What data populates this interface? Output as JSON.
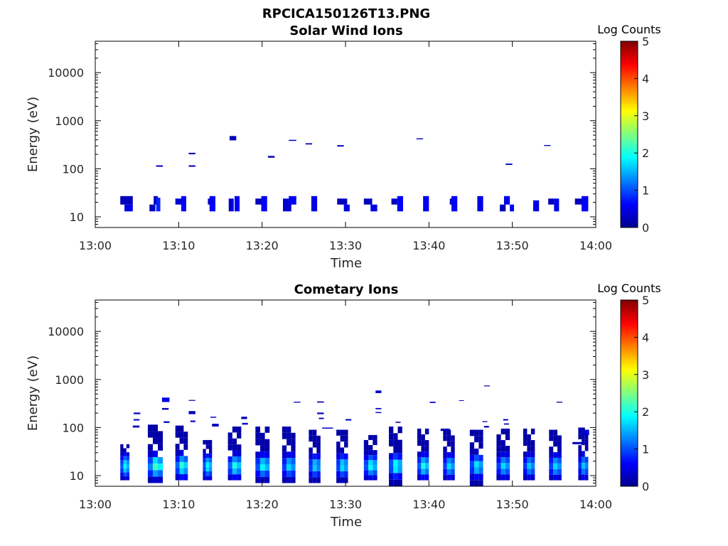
{
  "figure_title": "RPCICA150126T13.PNG",
  "chart_data": [
    {
      "type": "heatmap",
      "title": "Solar Wind Ions",
      "xlabel": "Time",
      "ylabel": "Energy (eV)",
      "x_ticks": [
        "13:00",
        "13:10",
        "13:20",
        "13:30",
        "13:40",
        "13:50",
        "14:00"
      ],
      "x_range_min": [
        0,
        60
      ],
      "y_ticks": [
        10,
        100,
        1000,
        10000
      ],
      "y_tick_labels": [
        "10",
        "100",
        "1000",
        "10000"
      ],
      "y_range_eV": [
        6,
        45000
      ],
      "y_scale": "log",
      "colorbar": {
        "label": "Log Counts",
        "range": [
          0,
          5
        ],
        "ticks": [
          "0",
          "1",
          "2",
          "3",
          "4",
          "5"
        ],
        "colormap": "jet"
      },
      "cells_note": "[t_start_min, t_end_min, e_low_eV, e_high_eV, log_counts]",
      "cells": [
        [
          3.0,
          4.5,
          18,
          27,
          0.3
        ],
        [
          3.5,
          4.5,
          13,
          18,
          0.5
        ],
        [
          6.5,
          7.2,
          13,
          18,
          0.3
        ],
        [
          7.0,
          7.5,
          18,
          27,
          0.3
        ],
        [
          7.3,
          7.8,
          13,
          25,
          0.8
        ],
        [
          7.3,
          8.1,
          110,
          118,
          0.3
        ],
        [
          9.6,
          10.4,
          18,
          24,
          0.4
        ],
        [
          10.3,
          10.9,
          13,
          27,
          0.6
        ],
        [
          11.2,
          12.0,
          200,
          215,
          0.3
        ],
        [
          11.2,
          12.0,
          110,
          118,
          0.3
        ],
        [
          13.5,
          14.0,
          18,
          24,
          0.3
        ],
        [
          13.7,
          14.4,
          13,
          27,
          0.6
        ],
        [
          16.0,
          16.6,
          13,
          24,
          0.4
        ],
        [
          16.1,
          16.9,
          390,
          480,
          0.3
        ],
        [
          16.7,
          17.3,
          13,
          27,
          0.6
        ],
        [
          19.2,
          19.9,
          18,
          24,
          0.3
        ],
        [
          19.9,
          20.6,
          13,
          27,
          0.6
        ],
        [
          20.7,
          21.5,
          170,
          185,
          0.3
        ],
        [
          22.5,
          23.5,
          13,
          24,
          0.4
        ],
        [
          23.2,
          24.1,
          18,
          27,
          0.6
        ],
        [
          23.2,
          24.1,
          380,
          400,
          0.3
        ],
        [
          25.2,
          26.0,
          320,
          340,
          0.3
        ],
        [
          25.9,
          26.6,
          13,
          27,
          0.5
        ],
        [
          29.0,
          29.8,
          290,
          310,
          0.3
        ],
        [
          29.0,
          30.2,
          18,
          24,
          0.3
        ],
        [
          29.8,
          30.5,
          13,
          18,
          0.5
        ],
        [
          32.2,
          33.2,
          18,
          24,
          0.3
        ],
        [
          33.0,
          33.8,
          13,
          18,
          0.5
        ],
        [
          35.5,
          36.2,
          18,
          24,
          0.3
        ],
        [
          36.2,
          36.9,
          13,
          27,
          0.6
        ],
        [
          38.5,
          39.3,
          410,
          430,
          0.3
        ],
        [
          39.3,
          40.0,
          13,
          27,
          0.6
        ],
        [
          42.5,
          43.0,
          18,
          24,
          0.3
        ],
        [
          42.7,
          43.4,
          13,
          27,
          0.6
        ],
        [
          45.8,
          46.5,
          13,
          27,
          0.5
        ],
        [
          48.5,
          49.2,
          13,
          18,
          0.3
        ],
        [
          49.0,
          49.7,
          18,
          27,
          0.5
        ],
        [
          49.2,
          50.0,
          120,
          128,
          0.3
        ],
        [
          49.7,
          50.2,
          13,
          18,
          0.6
        ],
        [
          52.5,
          53.2,
          13,
          22,
          0.5
        ],
        [
          53.8,
          54.6,
          298,
          312,
          0.3
        ],
        [
          54.3,
          55.0,
          18,
          24,
          0.3
        ],
        [
          55.0,
          55.6,
          13,
          24,
          0.5
        ],
        [
          57.5,
          58.5,
          18,
          24,
          0.3
        ],
        [
          58.3,
          59.1,
          13,
          27,
          0.6
        ]
      ]
    },
    {
      "type": "heatmap",
      "title": "Cometary Ions",
      "xlabel": "Time",
      "ylabel": "Energy (eV)",
      "x_ticks": [
        "13:00",
        "13:10",
        "13:20",
        "13:30",
        "13:40",
        "13:50",
        "14:00"
      ],
      "x_range_min": [
        0,
        60
      ],
      "y_ticks": [
        10,
        100,
        1000,
        10000
      ],
      "y_tick_labels": [
        "10",
        "100",
        "1000",
        "10000"
      ],
      "y_range_eV": [
        6,
        45000
      ],
      "y_scale": "log",
      "colorbar": {
        "label": "Log Counts",
        "range": [
          0,
          5
        ],
        "ticks": [
          "0",
          "1",
          "2",
          "3",
          "4",
          "5"
        ],
        "colormap": "jet"
      },
      "cells_note": "bursts: [t_start_min, width_min, e_low_eV, e_high_eV, peak_log_counts]; cells: [t_start_min, t_end_min, e_low_eV, e_high_eV, log_counts]",
      "bursts": [
        [
          3.0,
          1.1,
          8,
          45,
          1.9
        ],
        [
          6.3,
          1.8,
          7,
          115,
          2.3
        ],
        [
          9.6,
          1.5,
          8,
          110,
          2.1
        ],
        [
          12.9,
          1.1,
          8,
          55,
          1.9
        ],
        [
          15.9,
          1.6,
          8,
          105,
          2.0
        ],
        [
          19.2,
          1.7,
          7,
          105,
          1.9
        ],
        [
          22.4,
          1.6,
          7,
          105,
          1.7
        ],
        [
          25.6,
          1.4,
          7,
          90,
          1.7
        ],
        [
          28.9,
          1.4,
          7,
          90,
          1.8
        ],
        [
          32.2,
          1.6,
          8,
          70,
          1.9
        ],
        [
          35.2,
          1.6,
          6,
          105,
          2.0
        ],
        [
          38.6,
          1.4,
          8,
          95,
          2.0
        ],
        [
          41.7,
          1.4,
          8,
          90,
          1.7
        ],
        [
          44.9,
          1.6,
          6,
          90,
          1.8
        ],
        [
          48.1,
          1.6,
          8,
          95,
          1.7
        ],
        [
          51.3,
          1.4,
          8,
          95,
          1.6
        ],
        [
          54.4,
          1.5,
          8,
          90,
          1.7
        ],
        [
          57.9,
          1.2,
          8,
          100,
          1.6
        ]
      ],
      "cells": [
        [
          4.5,
          5.3,
          100,
          110,
          0.3
        ],
        [
          4.6,
          5.4,
          190,
          205,
          0.3
        ],
        [
          4.6,
          5.3,
          140,
          150,
          0.3
        ],
        [
          8.0,
          8.9,
          340,
          420,
          0.5
        ],
        [
          8.0,
          8.8,
          235,
          255,
          0.3
        ],
        [
          8.2,
          8.9,
          125,
          135,
          0.3
        ],
        [
          11.2,
          12.0,
          360,
          375,
          0.3
        ],
        [
          11.2,
          12.0,
          190,
          220,
          0.3
        ],
        [
          11.4,
          12.0,
          130,
          140,
          0.3
        ],
        [
          13.8,
          14.5,
          160,
          168,
          0.3
        ],
        [
          14.0,
          14.8,
          105,
          120,
          0.3
        ],
        [
          17.5,
          18.2,
          150,
          168,
          0.3
        ],
        [
          17.6,
          18.3,
          115,
          125,
          0.3
        ],
        [
          23.8,
          24.6,
          330,
          345,
          0.3
        ],
        [
          26.6,
          27.4,
          330,
          350,
          0.3
        ],
        [
          26.6,
          27.4,
          190,
          205,
          0.3
        ],
        [
          26.8,
          27.4,
          150,
          160,
          0.3
        ],
        [
          27.2,
          28.5,
          95,
          100,
          0.3
        ],
        [
          30.0,
          30.7,
          140,
          150,
          0.3
        ],
        [
          33.6,
          34.3,
          520,
          590,
          0.4
        ],
        [
          33.6,
          34.3,
          240,
          255,
          0.3
        ],
        [
          33.6,
          34.3,
          200,
          210,
          0.3
        ],
        [
          36.0,
          36.6,
          125,
          132,
          0.3
        ],
        [
          40.1,
          40.8,
          325,
          345,
          0.4
        ],
        [
          41.4,
          42.5,
          85,
          95,
          0.3
        ],
        [
          43.6,
          44.2,
          360,
          370,
          0.3
        ],
        [
          46.6,
          47.3,
          720,
          750,
          0.3
        ],
        [
          46.4,
          47.0,
          130,
          136,
          0.3
        ],
        [
          46.6,
          47.2,
          100,
          108,
          0.3
        ],
        [
          48.9,
          49.5,
          140,
          150,
          0.3
        ],
        [
          49.0,
          49.6,
          115,
          122,
          0.3
        ],
        [
          55.3,
          56.0,
          330,
          345,
          0.3
        ],
        [
          57.2,
          58.6,
          45,
          50,
          0.3
        ],
        [
          58.4,
          59.2,
          70,
          90,
          0.4
        ]
      ]
    }
  ]
}
